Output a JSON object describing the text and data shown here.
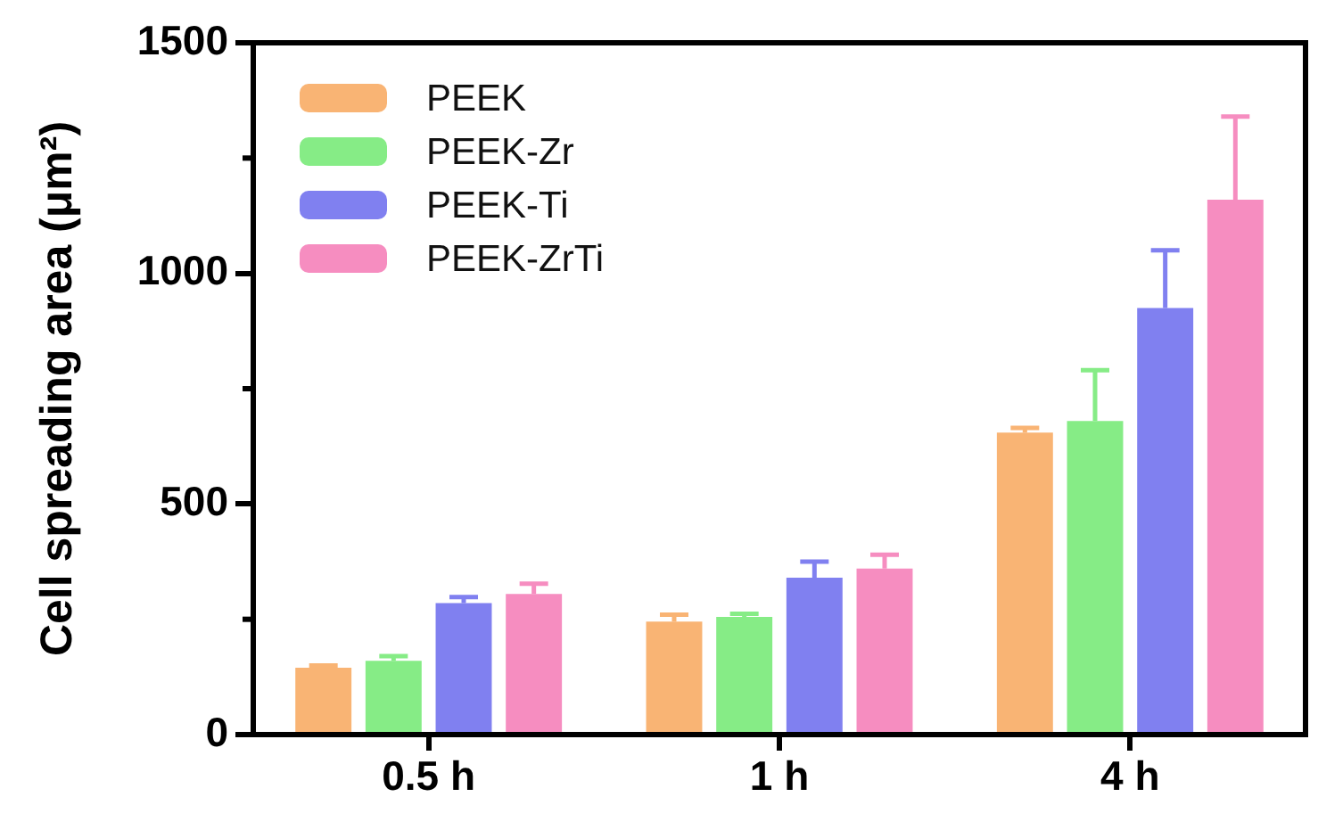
{
  "chart_data": {
    "type": "bar",
    "ylabel": "Cell spreading area (μm²)",
    "categories": [
      "0.5 h",
      "1 h",
      "4 h"
    ],
    "series": [
      {
        "name": "PEEK",
        "color": "#f9b474",
        "values": [
          145,
          245,
          655
        ],
        "errors": [
          [
            145,
            150
          ],
          [
            245,
            260
          ],
          [
            655,
            665
          ]
        ]
      },
      {
        "name": "PEEK-Zr",
        "color": "#86ec86",
        "values": [
          160,
          255,
          680
        ],
        "errors": [
          [
            160,
            170
          ],
          [
            255,
            262
          ],
          [
            680,
            790
          ]
        ]
      },
      {
        "name": "PEEK-Ti",
        "color": "#8080f0",
        "values": [
          285,
          340,
          925
        ],
        "errors": [
          [
            285,
            298
          ],
          [
            340,
            375
          ],
          [
            925,
            1050
          ]
        ]
      },
      {
        "name": "PEEK-ZrTi",
        "color": "#f68dc0",
        "values": [
          305,
          360,
          1160
        ],
        "errors": [
          [
            305,
            327
          ],
          [
            360,
            390
          ],
          [
            1160,
            1340
          ]
        ]
      }
    ],
    "ylim": [
      0,
      1500
    ],
    "yticks": [
      0,
      {
        "value": 250,
        "label": null
      },
      500,
      {
        "value": 750,
        "label": null
      },
      1000,
      {
        "value": 1250,
        "label": null
      },
      1500
    ],
    "legend": "top left",
    "grid": false
  }
}
